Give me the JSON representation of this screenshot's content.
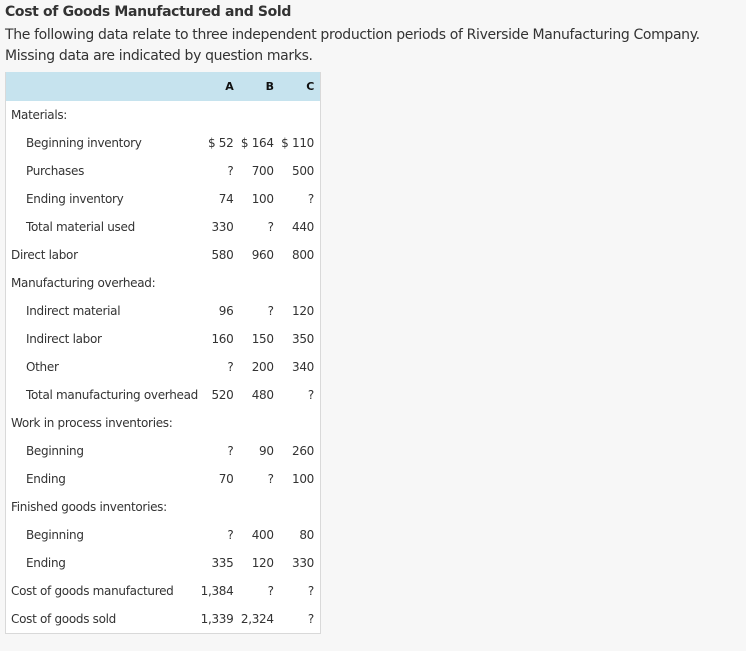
{
  "title": "Cost of Goods Manufactured and Sold",
  "intro": "The following data relate to three independent production periods of Riverside Manufacturing Company. Missing data are indicated by question marks.",
  "table": {
    "columns": [
      "",
      "A",
      "B",
      "C"
    ],
    "rows": [
      {
        "label": "Materials:",
        "indent": false,
        "a": "",
        "b": "",
        "c": ""
      },
      {
        "label": "Beginning inventory",
        "indent": true,
        "a": "$ 52",
        "b": "$ 164",
        "c": "$ 110"
      },
      {
        "label": "Purchases",
        "indent": true,
        "a": "?",
        "b": "700",
        "c": "500"
      },
      {
        "label": "Ending inventory",
        "indent": true,
        "a": "74",
        "b": "100",
        "c": "?"
      },
      {
        "label": "Total material used",
        "indent": true,
        "a": "330",
        "b": "?",
        "c": "440"
      },
      {
        "label": "Direct labor",
        "indent": false,
        "a": "580",
        "b": "960",
        "c": "800"
      },
      {
        "label": "Manufacturing overhead:",
        "indent": false,
        "a": "",
        "b": "",
        "c": ""
      },
      {
        "label": "Indirect material",
        "indent": true,
        "a": "96",
        "b": "?",
        "c": "120"
      },
      {
        "label": "Indirect labor",
        "indent": true,
        "a": "160",
        "b": "150",
        "c": "350"
      },
      {
        "label": "Other",
        "indent": true,
        "a": "?",
        "b": "200",
        "c": "340"
      },
      {
        "label": "Total manufacturing overhead",
        "indent": true,
        "a": "520",
        "b": "480",
        "c": "?"
      },
      {
        "label": "Work in process inventories:",
        "indent": false,
        "a": "",
        "b": "",
        "c": ""
      },
      {
        "label": "Beginning",
        "indent": true,
        "a": "?",
        "b": "90",
        "c": "260"
      },
      {
        "label": "Ending",
        "indent": true,
        "a": "70",
        "b": "?",
        "c": "100"
      },
      {
        "label": "Finished goods inventories:",
        "indent": false,
        "a": "",
        "b": "",
        "c": ""
      },
      {
        "label": "Beginning",
        "indent": true,
        "a": "?",
        "b": "400",
        "c": "80"
      },
      {
        "label": "Ending",
        "indent": true,
        "a": "335",
        "b": "120",
        "c": "330"
      },
      {
        "label": "Cost of goods manufactured",
        "indent": false,
        "a": "1,384",
        "b": "?",
        "c": "?"
      },
      {
        "label": "Cost of goods sold",
        "indent": false,
        "a": "1,339",
        "b": "2,324",
        "c": "?"
      }
    ]
  },
  "colors": {
    "header_bg": "#c6e3ee",
    "page_bg": "#f7f7f7",
    "table_bg": "#ffffff",
    "border": "#d9d9d9",
    "text": "#333333"
  }
}
